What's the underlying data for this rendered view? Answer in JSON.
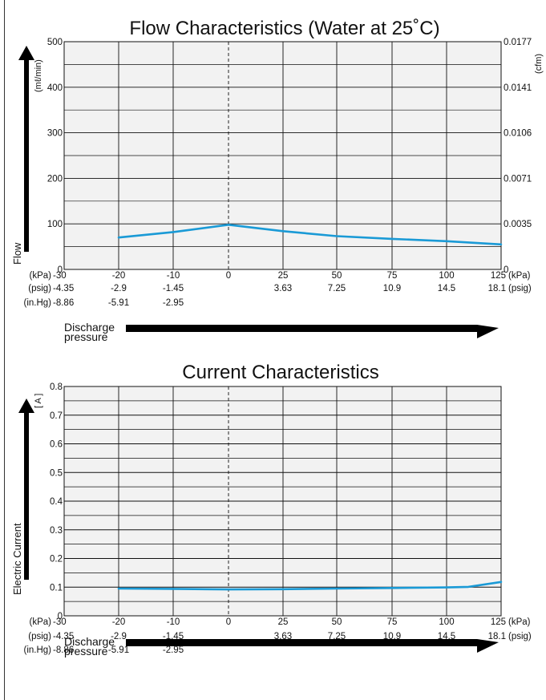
{
  "chart_data": [
    {
      "type": "line",
      "title": "Flow Characteristics (Water at 25˚C)",
      "ylabel": "Flow",
      "yunit": "(mℓ/min)",
      "y2unit": "(cfm)",
      "xlabel": [
        "Discharge",
        "pressure"
      ],
      "x_rows": [
        {
          "unit_left": "(kPa)",
          "unit_right": "(kPa)",
          "values": [
            "-30",
            "-20",
            "-10",
            "0",
            "25",
            "50",
            "75",
            "100",
            "125"
          ]
        },
        {
          "unit_left": "(psig)",
          "unit_right": "(psig)",
          "values": [
            "-4.35",
            "-2.9",
            "-1.45",
            "",
            "3.63",
            "7.25",
            "10.9",
            "14.5",
            "18.1"
          ]
        },
        {
          "unit_left": "(in.Hg)",
          "unit_right": "",
          "values": [
            "-8.86",
            "-5.91",
            "-2.95",
            "",
            "",
            "",
            "",
            "",
            ""
          ]
        }
      ],
      "yticks": [
        "0",
        "100",
        "200",
        "300",
        "400",
        "500"
      ],
      "y2ticks": [
        "0",
        "0.0035",
        "0.0071",
        "0.0106",
        "0.0141",
        "0.0177"
      ],
      "ylim": [
        0,
        500
      ],
      "series": [
        {
          "x": [
            -20,
            -10,
            0,
            25,
            50,
            75,
            100,
            125
          ],
          "y": [
            70,
            82,
            98,
            84,
            73,
            67,
            62,
            55
          ]
        }
      ],
      "line_color": "#1a9ad6",
      "grid": true
    },
    {
      "type": "line",
      "title": "Current Characteristics",
      "ylabel": "Electric Current",
      "yunit": "[ A ]",
      "xlabel": [
        "Discharge",
        "pressure"
      ],
      "x_rows": [
        {
          "unit_left": "(kPa)",
          "unit_right": "(kPa)",
          "values": [
            "-30",
            "-20",
            "-10",
            "0",
            "25",
            "50",
            "75",
            "100",
            "125"
          ]
        },
        {
          "unit_left": "(psig)",
          "unit_right": "(psig)",
          "values": [
            "-4.35",
            "-2.9",
            "-1.45",
            "",
            "3.63",
            "7.25",
            "10.9",
            "14.5",
            "18.1"
          ]
        },
        {
          "unit_left": "(in.Hg)",
          "unit_right": "",
          "values": [
            "-8.86",
            "-5.91",
            "-2.95",
            "",
            "",
            "",
            "",
            "",
            ""
          ]
        }
      ],
      "yticks": [
        "0",
        "0.1",
        "0.2",
        "0.3",
        "0.4",
        "0.5",
        "0.6",
        "0.7",
        "0.8"
      ],
      "ylim": [
        0,
        0.8
      ],
      "series": [
        {
          "x": [
            -20,
            -10,
            0,
            25,
            50,
            75,
            100,
            110,
            125
          ],
          "y": [
            0.095,
            0.094,
            0.092,
            0.093,
            0.095,
            0.097,
            0.099,
            0.101,
            0.118
          ]
        }
      ],
      "line_color": "#1a9ad6",
      "grid": true
    }
  ]
}
